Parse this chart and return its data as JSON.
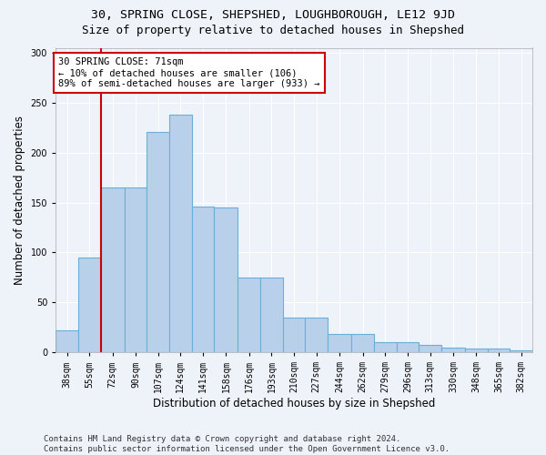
{
  "title1": "30, SPRING CLOSE, SHEPSHED, LOUGHBOROUGH, LE12 9JD",
  "title2": "Size of property relative to detached houses in Shepshed",
  "xlabel": "Distribution of detached houses by size in Shepshed",
  "ylabel": "Number of detached properties",
  "categories": [
    "38sqm",
    "55sqm",
    "72sqm",
    "90sqm",
    "107sqm",
    "124sqm",
    "141sqm",
    "158sqm",
    "176sqm",
    "193sqm",
    "210sqm",
    "227sqm",
    "244sqm",
    "262sqm",
    "279sqm",
    "296sqm",
    "313sqm",
    "330sqm",
    "348sqm",
    "365sqm",
    "382sqm"
  ],
  "bar_heights": [
    22,
    95,
    165,
    165,
    221,
    238,
    146,
    145,
    75,
    75,
    35,
    35,
    18,
    18,
    10,
    10,
    7,
    5,
    4,
    4,
    2
  ],
  "bar_color": "#b8d0ea",
  "bar_edge_color": "#6baed6",
  "annotation_line1": "30 SPRING CLOSE: 71sqm",
  "annotation_line2": "← 10% of detached houses are smaller (106)",
  "annotation_line3": "89% of semi-detached houses are larger (933) →",
  "annotation_box_color": "#ffffff",
  "annotation_box_edge_color": "#cc0000",
  "vline_x": 72,
  "vline_color": "#cc0000",
  "bin_edges": [
    38,
    55,
    72,
    90,
    107,
    124,
    141,
    158,
    176,
    193,
    210,
    227,
    244,
    262,
    279,
    296,
    313,
    330,
    348,
    365,
    382,
    399
  ],
  "xlim_left": 38,
  "xlim_right": 399,
  "ylim_top": 305,
  "yticks": [
    0,
    50,
    100,
    150,
    200,
    250,
    300
  ],
  "footer_line1": "Contains HM Land Registry data © Crown copyright and database right 2024.",
  "footer_line2": "Contains public sector information licensed under the Open Government Licence v3.0.",
  "background_color": "#eef2f9",
  "grid_color": "#ffffff",
  "title1_fontsize": 9.5,
  "title2_fontsize": 9,
  "tick_fontsize": 7,
  "ylabel_fontsize": 8.5,
  "xlabel_fontsize": 8.5,
  "footer_fontsize": 6.5,
  "annot_fontsize": 7.5
}
